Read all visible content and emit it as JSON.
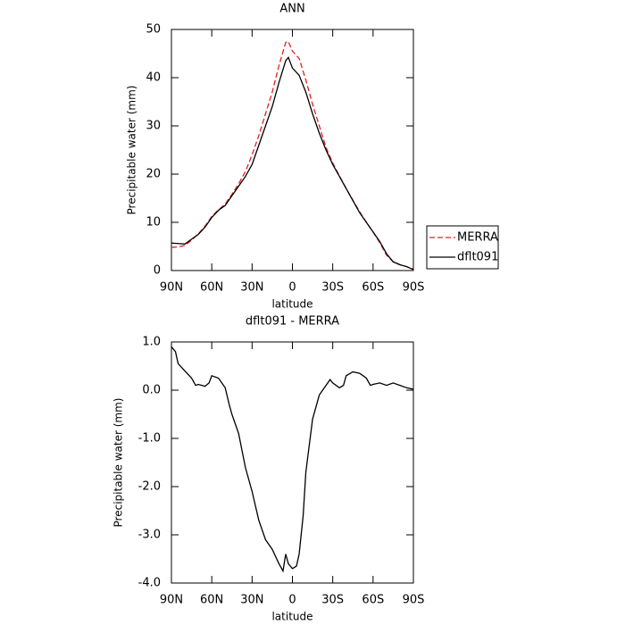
{
  "chart_data": [
    {
      "type": "line",
      "title": "ANN",
      "x_label": "latitude",
      "y_label": "Precipitable water (mm)",
      "x": [
        90,
        85,
        80,
        75,
        70,
        65,
        60,
        55,
        50,
        45,
        40,
        35,
        30,
        25,
        20,
        15,
        10,
        5,
        3,
        0,
        -5,
        -10,
        -15,
        -20,
        -25,
        -30,
        -35,
        -40,
        -45,
        -50,
        -55,
        -60,
        -65,
        -70,
        -75,
        -80,
        -85,
        -90
      ],
      "series": [
        {
          "name": "MERRA",
          "color": "#e02020",
          "linestyle": "dashed",
          "values": [
            4.8,
            4.9,
            5.2,
            6.3,
            7.6,
            9.2,
            11.2,
            12.6,
            13.8,
            15.8,
            18,
            20.5,
            24,
            28,
            32.5,
            37,
            42.5,
            47.3,
            47.5,
            45.5,
            44,
            39.5,
            34.5,
            30,
            25.5,
            22.3,
            19.6,
            17,
            14.6,
            12.2,
            10,
            8,
            5.8,
            3.2,
            1.8,
            1.2,
            0.8,
            0.3
          ]
        },
        {
          "name": "dflt091",
          "color": "#000000",
          "linestyle": "solid",
          "values": [
            5.7,
            5.6,
            5.5,
            6.5,
            7.5,
            9,
            11,
            12.5,
            13.5,
            15.5,
            17.5,
            19.5,
            22,
            26,
            30,
            34,
            39,
            43.5,
            44.2,
            42,
            40.5,
            37,
            32.5,
            28.5,
            25,
            22,
            19.5,
            17,
            14.5,
            12,
            10,
            8,
            6,
            3.5,
            1.8,
            1.2,
            0.8,
            0.2
          ]
        }
      ],
      "xlim": [
        90,
        -90
      ],
      "xticks": [
        {
          "value": 90,
          "label": "90N"
        },
        {
          "value": 60,
          "label": "60N"
        },
        {
          "value": 30,
          "label": "30N"
        },
        0,
        {
          "value": -30,
          "label": "30S"
        },
        {
          "value": -60,
          "label": "60S"
        },
        {
          "value": -90,
          "label": "90S"
        }
      ],
      "ylim": [
        0,
        50
      ],
      "yticks": [
        0,
        10,
        20,
        30,
        40,
        50
      ],
      "legend": "right"
    },
    {
      "type": "line",
      "title": "dflt091 - MERRA",
      "x_label": "latitude",
      "y_label": "Precipitable water (mm)",
      "x": [
        90,
        87,
        85,
        80,
        75,
        72,
        70,
        65,
        62,
        60,
        55,
        50,
        47,
        45,
        40,
        35,
        30,
        25,
        20,
        15,
        10,
        7,
        5,
        3,
        0,
        -3,
        -5,
        -8,
        -10,
        -15,
        -20,
        -25,
        -28,
        -30,
        -35,
        -38,
        -40,
        -45,
        -50,
        -55,
        -58,
        -60,
        -65,
        -70,
        -75,
        -80,
        -85,
        -90
      ],
      "series": [
        {
          "name": "dflt091 - MERRA",
          "color": "#000000",
          "linestyle": "solid",
          "values": [
            0.9,
            0.8,
            0.55,
            0.4,
            0.25,
            0.1,
            0.12,
            0.08,
            0.15,
            0.3,
            0.25,
            0.05,
            -0.3,
            -0.5,
            -0.9,
            -1.6,
            -2.1,
            -2.7,
            -3.1,
            -3.3,
            -3.6,
            -3.75,
            -3.4,
            -3.6,
            -3.7,
            -3.65,
            -3.4,
            -2.6,
            -1.7,
            -0.6,
            -0.1,
            0.1,
            0.22,
            0.15,
            0.05,
            0.1,
            0.3,
            0.38,
            0.35,
            0.25,
            0.1,
            0.12,
            0.15,
            0.1,
            0.15,
            0.1,
            0.05,
            0.02
          ]
        }
      ],
      "xlim": [
        90,
        -90
      ],
      "xticks": [
        {
          "value": 90,
          "label": "90N"
        },
        {
          "value": 60,
          "label": "60N"
        },
        {
          "value": 30,
          "label": "30N"
        },
        0,
        {
          "value": -30,
          "label": "30S"
        },
        {
          "value": -60,
          "label": "60S"
        },
        {
          "value": -90,
          "label": "90S"
        }
      ],
      "ylim": [
        -4,
        1
      ],
      "yticks": [
        {
          "value": 1,
          "label": "1.0"
        },
        {
          "value": 0,
          "label": "0.0"
        },
        {
          "value": -1,
          "label": "-1.0"
        },
        {
          "value": -2,
          "label": "-2.0"
        },
        {
          "value": -3,
          "label": "-3.0"
        },
        {
          "value": -4,
          "label": "-4.0"
        }
      ]
    }
  ]
}
